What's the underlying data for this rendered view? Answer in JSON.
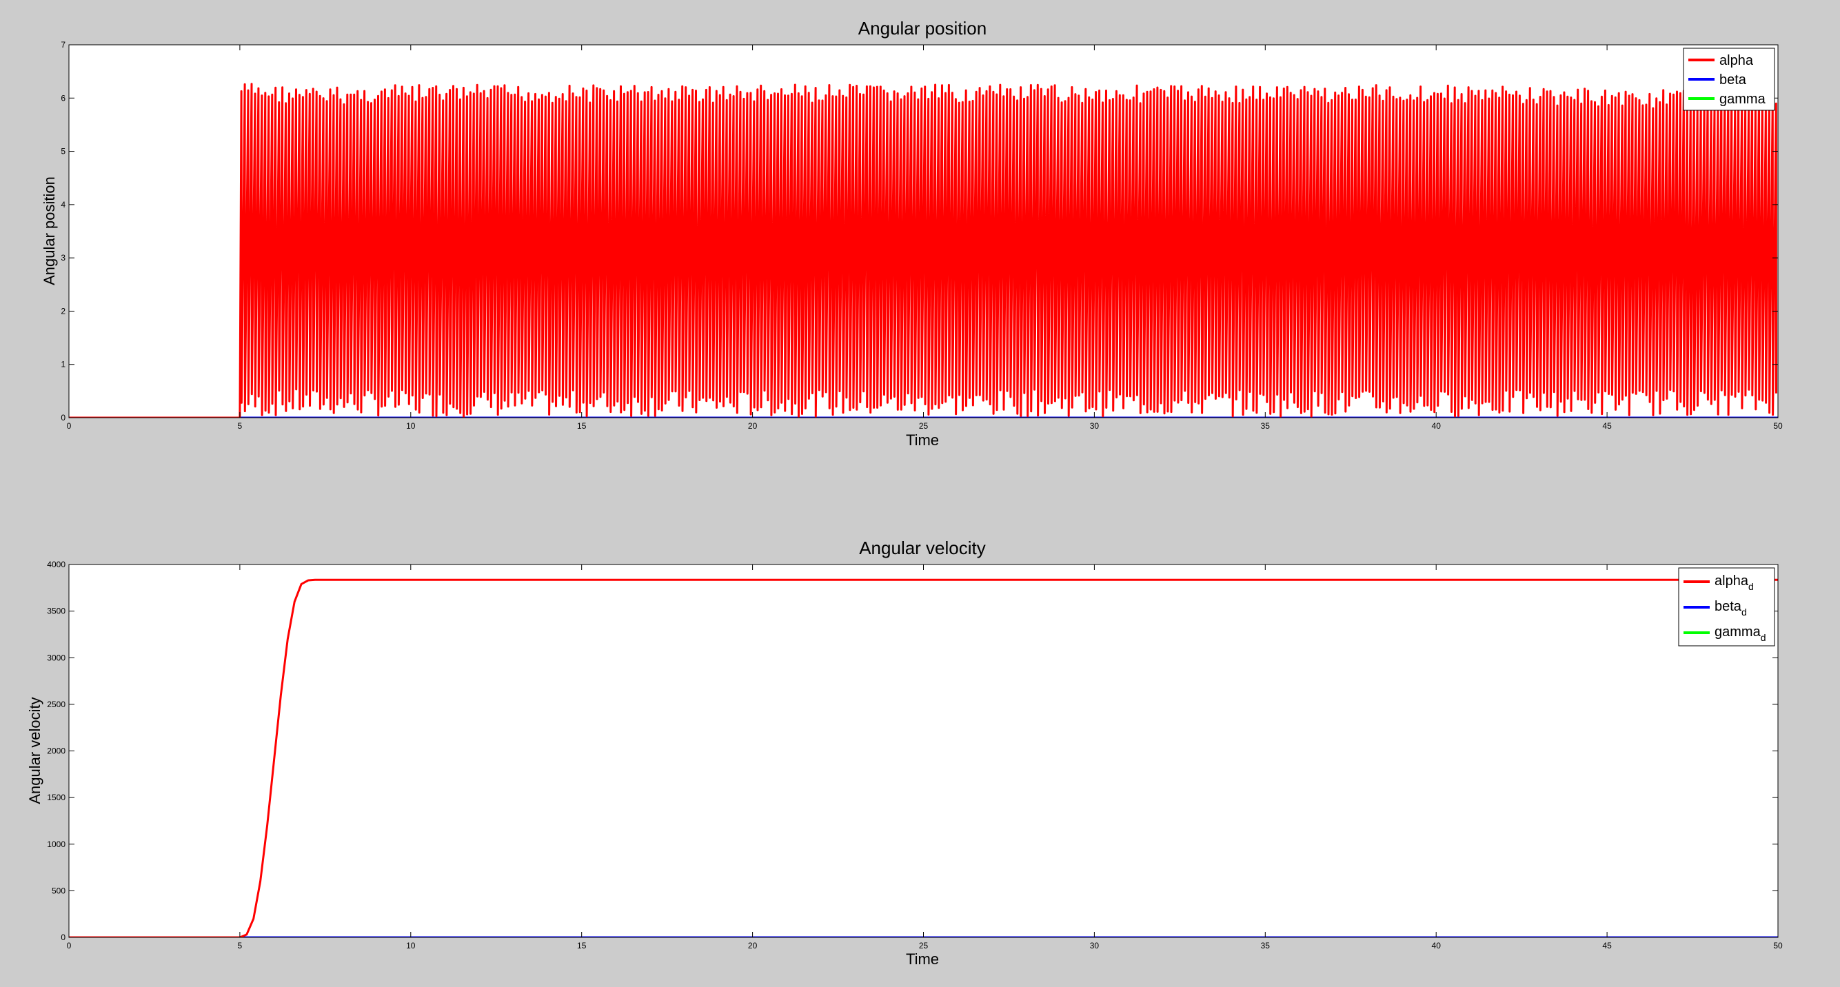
{
  "chart_data": [
    {
      "type": "line",
      "title": "Angular position",
      "xlabel": "Time",
      "ylabel": "Angular position",
      "xlim": [
        0,
        50
      ],
      "ylim": [
        0,
        7
      ],
      "xticks": [
        0,
        5,
        10,
        15,
        20,
        25,
        30,
        35,
        40,
        45,
        50
      ],
      "yticks": [
        0,
        1,
        2,
        3,
        4,
        5,
        6,
        7
      ],
      "grid": false,
      "legend_position": "top-right",
      "series": [
        {
          "name": "alpha",
          "name_sub": "",
          "color": "#ff0000",
          "behavior": "zero until t=5, then rapid oscillation between 0 and ~6.28 (wrapped angle)",
          "start_time": 5.0,
          "period_estimate": 0.1,
          "upper_envelope": [
            [
              5.2,
              6.3
            ],
            [
              7,
              6.2
            ],
            [
              10,
              6.25
            ],
            [
              20,
              6.25
            ],
            [
              30,
              6.25
            ],
            [
              40,
              6.25
            ],
            [
              50,
              6.1
            ]
          ],
          "lower_envelope": [
            [
              5.2,
              0.0
            ],
            [
              7,
              0.05
            ],
            [
              10,
              0.02
            ],
            [
              20,
              0.02
            ],
            [
              30,
              0.03
            ],
            [
              40,
              0.02
            ],
            [
              50,
              0.05
            ]
          ]
        },
        {
          "name": "beta",
          "name_sub": "",
          "color": "#0000ff",
          "x": [
            0,
            50
          ],
          "y": [
            0,
            0
          ]
        },
        {
          "name": "gamma",
          "name_sub": "",
          "color": "#00ff00",
          "x": [
            0,
            50
          ],
          "y": [
            0,
            0
          ]
        }
      ]
    },
    {
      "type": "line",
      "title": "Angular velocity",
      "xlabel": "Time",
      "ylabel": "Angular velocity",
      "xlim": [
        0,
        50
      ],
      "ylim": [
        0,
        4000
      ],
      "xticks": [
        0,
        5,
        10,
        15,
        20,
        25,
        30,
        35,
        40,
        45,
        50
      ],
      "yticks": [
        0,
        500,
        1000,
        1500,
        2000,
        2500,
        3000,
        3500,
        4000
      ],
      "grid": false,
      "legend_position": "top-right",
      "series": [
        {
          "name": "alpha",
          "name_sub": "d",
          "color": "#ff0000",
          "x": [
            0,
            5.0,
            5.2,
            5.4,
            5.6,
            5.8,
            6.0,
            6.2,
            6.4,
            6.6,
            6.8,
            7.0,
            7.2,
            10,
            20,
            30,
            40,
            50
          ],
          "y": [
            0,
            0,
            30,
            200,
            600,
            1200,
            1900,
            2600,
            3200,
            3600,
            3790,
            3830,
            3835,
            3835,
            3835,
            3835,
            3835,
            3835
          ]
        },
        {
          "name": "beta",
          "name_sub": "d",
          "color": "#0000ff",
          "x": [
            0,
            50
          ],
          "y": [
            0,
            0
          ]
        },
        {
          "name": "gamma",
          "name_sub": "d",
          "color": "#00ff00",
          "x": [
            0,
            50
          ],
          "y": [
            0,
            0
          ]
        }
      ]
    }
  ]
}
